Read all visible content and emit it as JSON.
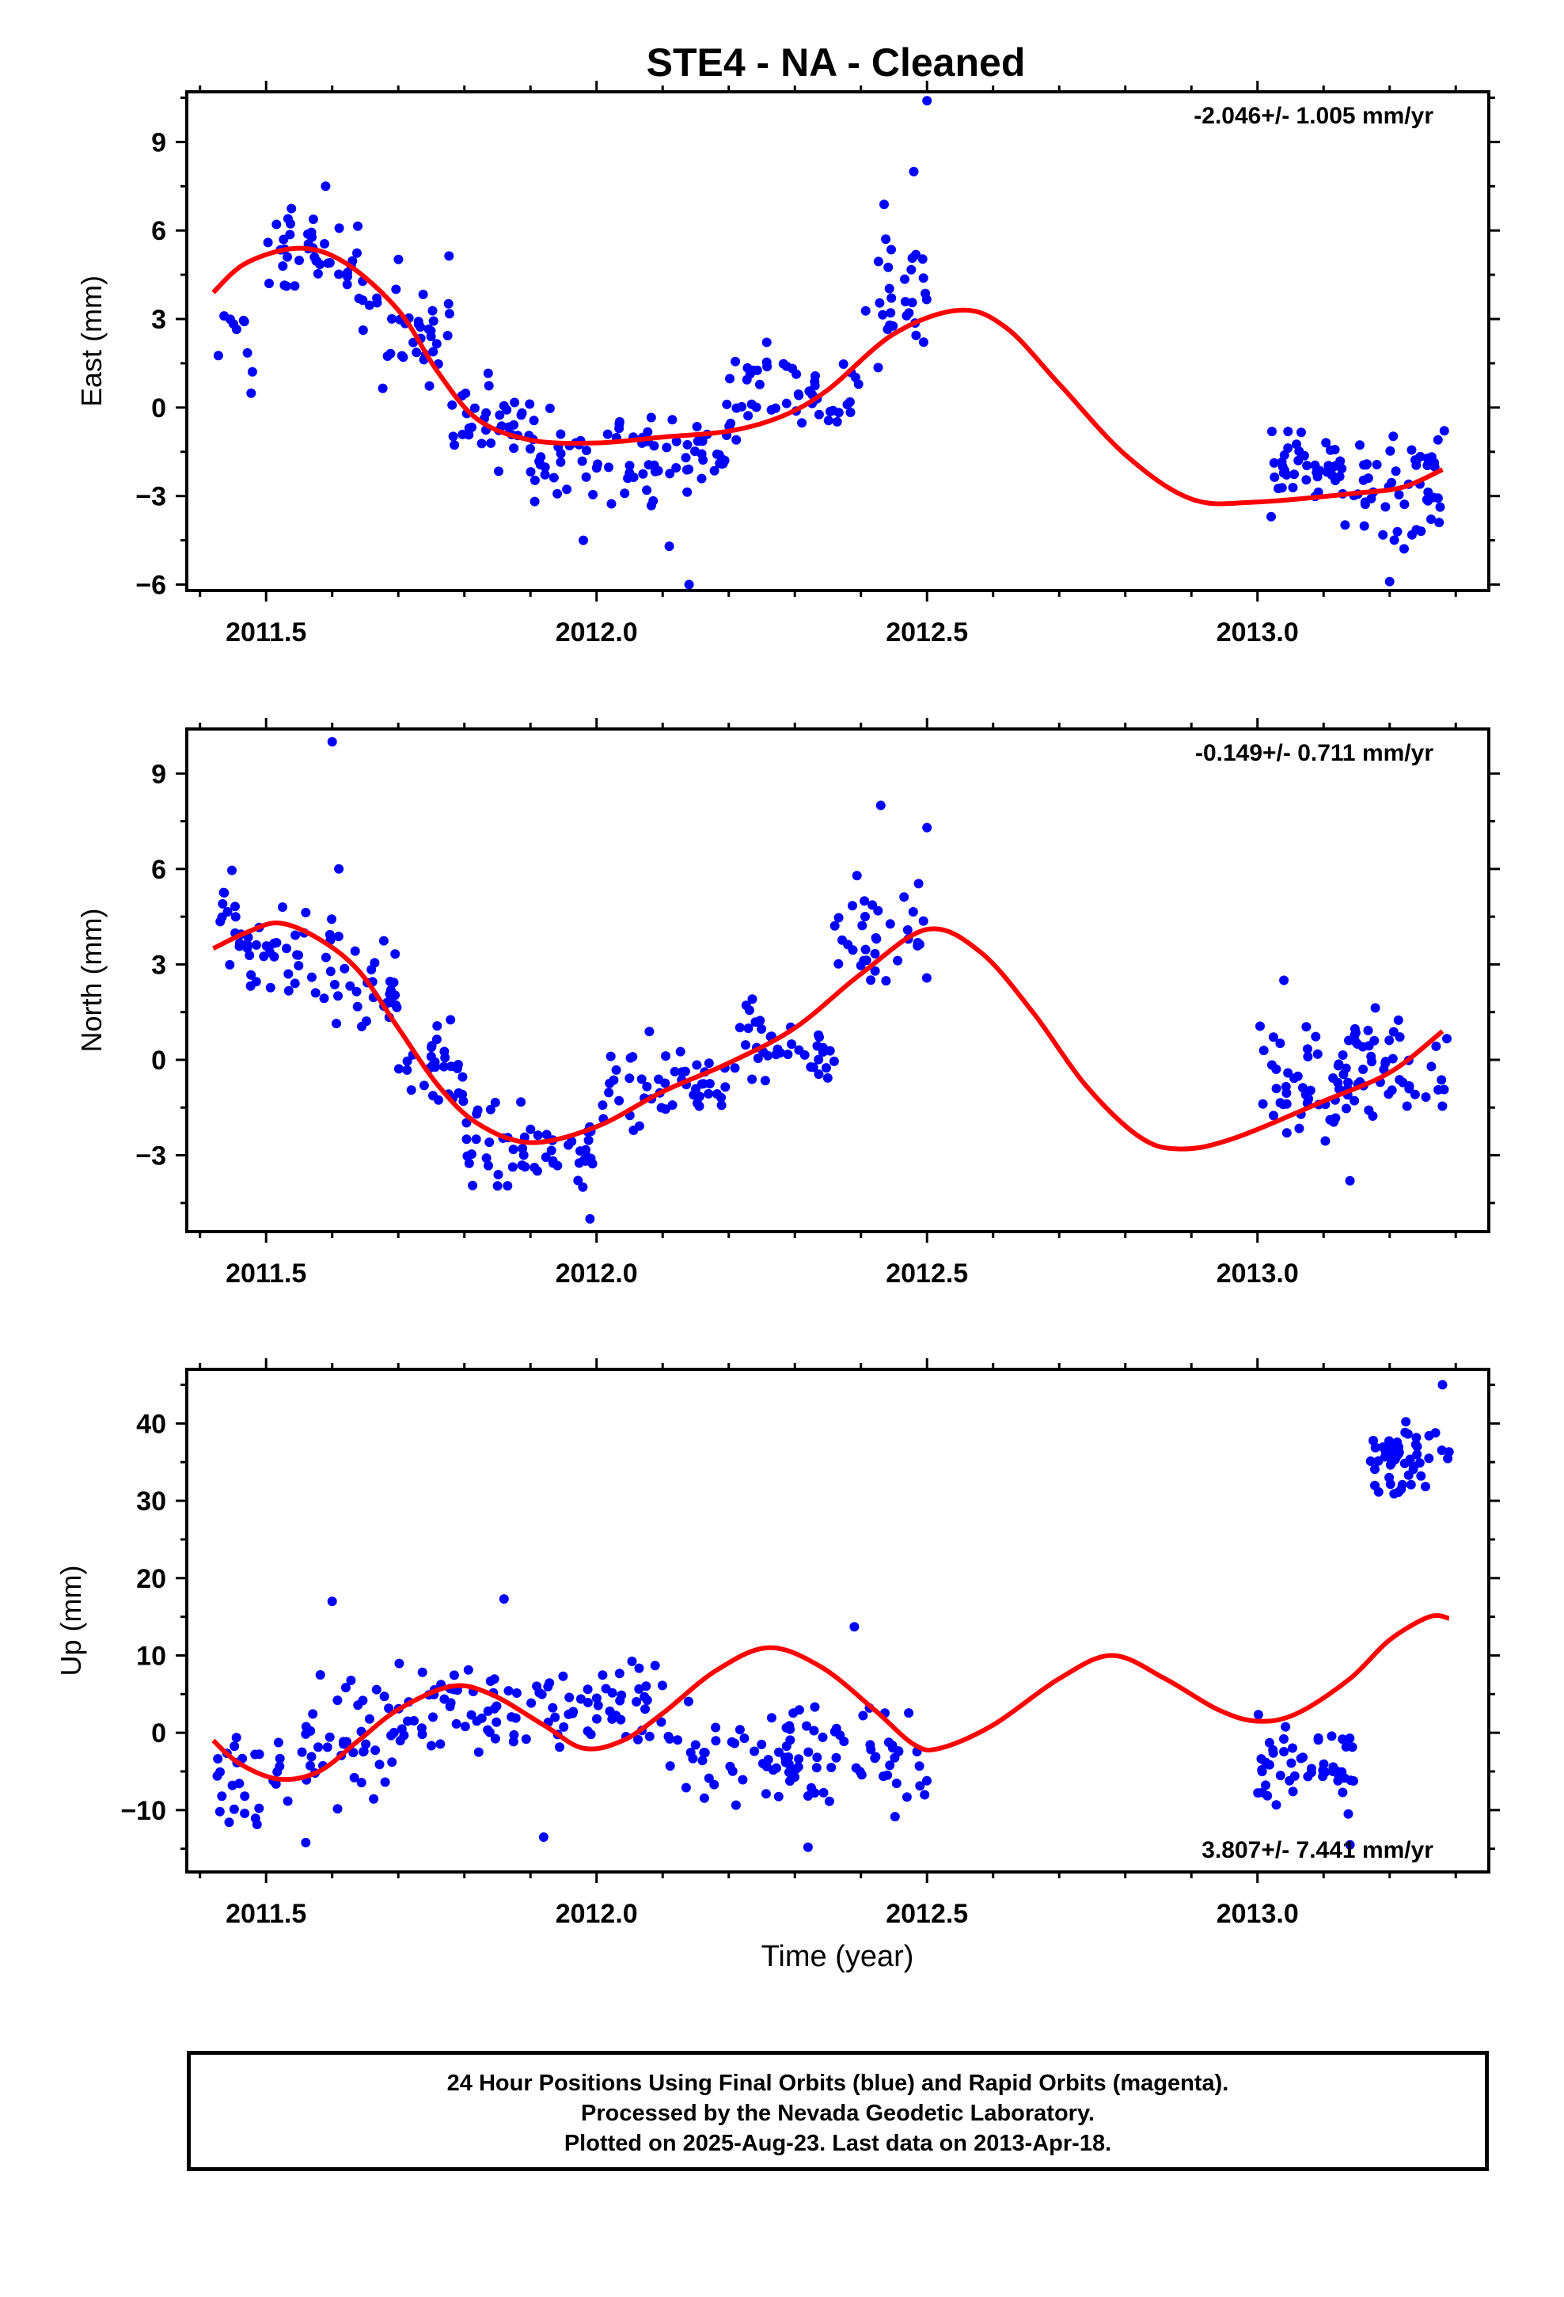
{
  "title": "STE4  - NA - Cleaned",
  "xlabel": "Time (year)",
  "footer": {
    "line1": "24 Hour Positions Using Final Orbits (blue) and Rapid Orbits (magenta).",
    "line2": "Processed by the Nevada Geodetic Laboratory.",
    "line3": "Plotted on 2025-Aug-23. Last data on 2013-Apr-18."
  },
  "colors": {
    "points": "#0000ff",
    "fit": "#ff0000",
    "axes": "#000000"
  },
  "chart_data": [
    {
      "type": "scatter",
      "ylabel": "East (mm)",
      "rate": "-2.046+/- 1.005 mm/yr",
      "rate_position": "top-right",
      "xlim": [
        2011.38,
        2013.35
      ],
      "ylim": [
        -6.2,
        10.7
      ],
      "xticks": [
        2011.5,
        2012.0,
        2012.5,
        2013.0
      ],
      "xticklabels": [
        "2011.5",
        "2012.0",
        "2012.5",
        "2013.0"
      ],
      "yticks": [
        -6,
        -3,
        0,
        3,
        6,
        9
      ],
      "yticklabels": [
        "−6",
        "−3",
        "0",
        "3",
        "6",
        "9"
      ],
      "grid": false,
      "fit_points": [
        [
          2011.42,
          3.9
        ],
        [
          2011.47,
          4.9
        ],
        [
          2011.55,
          5.4
        ],
        [
          2011.62,
          4.9
        ],
        [
          2011.7,
          3.3
        ],
        [
          2011.76,
          1.2
        ],
        [
          2011.82,
          -0.4
        ],
        [
          2011.9,
          -1.1
        ],
        [
          2012.0,
          -1.2
        ],
        [
          2012.1,
          -1.0
        ],
        [
          2012.2,
          -0.8
        ],
        [
          2012.28,
          -0.3
        ],
        [
          2012.35,
          0.6
        ],
        [
          2012.45,
          2.5
        ],
        [
          2012.55,
          3.3
        ],
        [
          2012.62,
          2.7
        ],
        [
          2012.7,
          0.8
        ],
        [
          2012.8,
          -1.6
        ],
        [
          2012.9,
          -3.1
        ],
        [
          2013.0,
          -3.2
        ],
        [
          2013.15,
          -2.9
        ],
        [
          2013.22,
          -2.7
        ],
        [
          2013.28,
          -2.1
        ]
      ],
      "point_clusters": [
        {
          "x": [
            2011.42,
            2011.49
          ],
          "y": 2.0,
          "spread": 1.2,
          "n": 10
        },
        {
          "x": [
            2011.49,
            2011.64
          ],
          "y": 5.2,
          "spread": 0.9,
          "n": 40
        },
        {
          "x": [
            2011.64,
            2011.78
          ],
          "y": 2.9,
          "spread": 1.3,
          "n": 40
        },
        {
          "x": [
            2011.78,
            2011.9
          ],
          "y": -0.6,
          "spread": 1.0,
          "n": 35
        },
        {
          "x": [
            2011.9,
            2012.1
          ],
          "y": -1.6,
          "spread": 1.0,
          "n": 55
        },
        {
          "x": [
            2012.1,
            2012.2
          ],
          "y": -1.6,
          "spread": 1.1,
          "n": 30
        },
        {
          "x": [
            2012.2,
            2012.4
          ],
          "y": 0.6,
          "spread": 1.0,
          "n": 50
        },
        {
          "x": [
            2012.4,
            2012.5
          ],
          "y": 3.7,
          "spread": 1.6,
          "n": 30
        },
        {
          "x": [
            2013.02,
            2013.17
          ],
          "y": -2.1,
          "spread": 1.0,
          "n": 55
        },
        {
          "x": [
            2013.17,
            2013.29
          ],
          "y": -2.7,
          "spread": 1.4,
          "n": 40
        }
      ],
      "outliers": [
        [
          2012.5,
          10.4
        ],
        [
          2012.14,
          -6.0
        ],
        [
          2011.59,
          7.5
        ],
        [
          2012.48,
          8.0
        ],
        [
          2013.2,
          -5.9
        ],
        [
          2011.98,
          -4.5
        ],
        [
          2012.11,
          -4.7
        ]
      ]
    },
    {
      "type": "scatter",
      "ylabel": "North (mm)",
      "rate": "-0.149+/- 0.711 mm/yr",
      "rate_position": "top-right",
      "xlim": [
        2011.38,
        2013.35
      ],
      "ylim": [
        -5.4,
        10.4
      ],
      "xticks": [
        2011.5,
        2012.0,
        2012.5,
        2013.0
      ],
      "xticklabels": [
        "2011.5",
        "2012.0",
        "2012.5",
        "2013.0"
      ],
      "yticks": [
        -3,
        0,
        3,
        6,
        9
      ],
      "yticklabels": [
        "−3",
        "0",
        "3",
        "6",
        "9"
      ],
      "grid": false,
      "fit_points": [
        [
          2011.42,
          3.5
        ],
        [
          2011.47,
          4.0
        ],
        [
          2011.52,
          4.3
        ],
        [
          2011.58,
          3.8
        ],
        [
          2011.64,
          2.8
        ],
        [
          2011.7,
          1.0
        ],
        [
          2011.76,
          -0.8
        ],
        [
          2011.82,
          -2.0
        ],
        [
          2011.9,
          -2.6
        ],
        [
          2012.0,
          -2.1
        ],
        [
          2012.1,
          -1.0
        ],
        [
          2012.2,
          -0.1
        ],
        [
          2012.3,
          1.0
        ],
        [
          2012.4,
          2.7
        ],
        [
          2012.5,
          4.1
        ],
        [
          2012.58,
          3.4
        ],
        [
          2012.66,
          1.5
        ],
        [
          2012.74,
          -0.8
        ],
        [
          2012.82,
          -2.4
        ],
        [
          2012.88,
          -2.8
        ],
        [
          2012.96,
          -2.5
        ],
        [
          2013.1,
          -1.3
        ],
        [
          2013.2,
          -0.4
        ],
        [
          2013.28,
          0.9
        ]
      ],
      "point_clusters": [
        {
          "x": [
            2011.42,
            2011.46
          ],
          "y": 4.6,
          "spread": 1.0,
          "n": 12
        },
        {
          "x": [
            2011.46,
            2011.6
          ],
          "y": 3.3,
          "spread": 0.9,
          "n": 40
        },
        {
          "x": [
            2011.6,
            2011.7
          ],
          "y": 2.3,
          "spread": 1.0,
          "n": 30
        },
        {
          "x": [
            2011.7,
            2011.8
          ],
          "y": -0.5,
          "spread": 1.0,
          "n": 30
        },
        {
          "x": [
            2011.8,
            2012.0
          ],
          "y": -3.0,
          "spread": 0.9,
          "n": 55
        },
        {
          "x": [
            2012.0,
            2012.2
          ],
          "y": -0.8,
          "spread": 0.9,
          "n": 50
        },
        {
          "x": [
            2012.2,
            2012.36
          ],
          "y": 0.6,
          "spread": 0.9,
          "n": 40
        },
        {
          "x": [
            2012.36,
            2012.5
          ],
          "y": 3.8,
          "spread": 1.2,
          "n": 35
        },
        {
          "x": [
            2013.0,
            2013.14
          ],
          "y": -0.8,
          "spread": 1.0,
          "n": 50
        },
        {
          "x": [
            2013.14,
            2013.29
          ],
          "y": -0.2,
          "spread": 1.1,
          "n": 45
        }
      ],
      "outliers": [
        [
          2011.6,
          10.0
        ],
        [
          2012.43,
          8.0
        ],
        [
          2011.61,
          6.0
        ],
        [
          2013.14,
          -3.8
        ],
        [
          2011.99,
          -5.0
        ],
        [
          2013.04,
          2.5
        ],
        [
          2012.5,
          7.3
        ]
      ]
    },
    {
      "type": "scatter",
      "ylabel": "Up (mm)",
      "rate": "3.807+/- 7.441 mm/yr",
      "rate_position": "bottom-right",
      "xlim": [
        2011.38,
        2013.35
      ],
      "ylim": [
        -18,
        47
      ],
      "xticks": [
        2011.5,
        2012.0,
        2012.5,
        2013.0
      ],
      "xticklabels": [
        "2011.5",
        "2012.0",
        "2012.5",
        "2013.0"
      ],
      "yticks": [
        -10,
        0,
        10,
        20,
        30,
        40
      ],
      "yticklabels": [
        "−10",
        "0",
        "10",
        "20",
        "30",
        "40"
      ],
      "grid": false,
      "fit_points": [
        [
          2011.42,
          -1.0
        ],
        [
          2011.46,
          -4.0
        ],
        [
          2011.52,
          -6.0
        ],
        [
          2011.58,
          -5.0
        ],
        [
          2011.64,
          -1.0
        ],
        [
          2011.7,
          3.0
        ],
        [
          2011.78,
          6.0
        ],
        [
          2011.84,
          5.0
        ],
        [
          2011.92,
          1.0
        ],
        [
          2011.98,
          -2.0
        ],
        [
          2012.04,
          -1.0
        ],
        [
          2012.1,
          2.5
        ],
        [
          2012.18,
          8.0
        ],
        [
          2012.26,
          11.0
        ],
        [
          2012.34,
          8.5
        ],
        [
          2012.42,
          3.0
        ],
        [
          2012.48,
          -1.5
        ],
        [
          2012.52,
          -2.0
        ],
        [
          2012.6,
          1.0
        ],
        [
          2012.7,
          7.0
        ],
        [
          2012.78,
          10.0
        ],
        [
          2012.86,
          7.0
        ],
        [
          2012.94,
          3.0
        ],
        [
          2013.0,
          1.5
        ],
        [
          2013.06,
          2.5
        ],
        [
          2013.14,
          7.0
        ],
        [
          2013.2,
          12.0
        ],
        [
          2013.26,
          15.0
        ],
        [
          2013.29,
          14.8
        ]
      ],
      "point_clusters": [
        {
          "x": [
            2011.42,
            2011.52
          ],
          "y": -6.0,
          "spread": 4.0,
          "n": 25
        },
        {
          "x": [
            2011.52,
            2011.7
          ],
          "y": -1.0,
          "spread": 5.0,
          "n": 45
        },
        {
          "x": [
            2011.7,
            2011.9
          ],
          "y": 3.5,
          "spread": 4.0,
          "n": 50
        },
        {
          "x": [
            2011.9,
            2012.1
          ],
          "y": 3.5,
          "spread": 4.5,
          "n": 50
        },
        {
          "x": [
            2012.1,
            2012.3
          ],
          "y": -2.5,
          "spread": 4.5,
          "n": 50
        },
        {
          "x": [
            2012.3,
            2012.5
          ],
          "y": -3.0,
          "spread": 5.0,
          "n": 50
        },
        {
          "x": [
            2013.0,
            2013.15
          ],
          "y": -4.5,
          "spread": 4.0,
          "n": 50
        },
        {
          "x": [
            2013.17,
            2013.29
          ],
          "y": 35.5,
          "spread": 3.0,
          "n": 55
        }
      ],
      "outliers": [
        [
          2011.6,
          17.0
        ],
        [
          2011.86,
          17.3
        ],
        [
          2012.39,
          13.7
        ],
        [
          2011.92,
          -13.5
        ],
        [
          2011.56,
          -14.2
        ],
        [
          2012.32,
          -14.8
        ],
        [
          2013.14,
          -14.5
        ],
        [
          2013.28,
          45.0
        ]
      ]
    }
  ]
}
